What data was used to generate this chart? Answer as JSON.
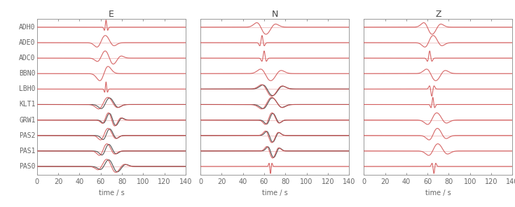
{
  "stations": [
    "ADH0",
    "ADE0",
    "ADC0",
    "BBN0",
    "LBH0",
    "KLT1",
    "GRW1",
    "PAS2",
    "PAS1",
    "PAS0"
  ],
  "components": [
    "E",
    "N",
    "Z"
  ],
  "time_range": [
    0,
    140
  ],
  "xlabel": "time / s",
  "xticks": [
    0,
    20,
    40,
    60,
    80,
    100,
    120,
    140
  ],
  "background_color": "#ffffff",
  "panel_bg": "#ffffff",
  "border_color": "#999999",
  "station_label_color": "#666666",
  "title_color": "#444444",
  "red_color": "#d05050",
  "dark_color": "#333333",
  "font_size_title": 9,
  "font_size_labels": 7,
  "font_size_station": 7
}
